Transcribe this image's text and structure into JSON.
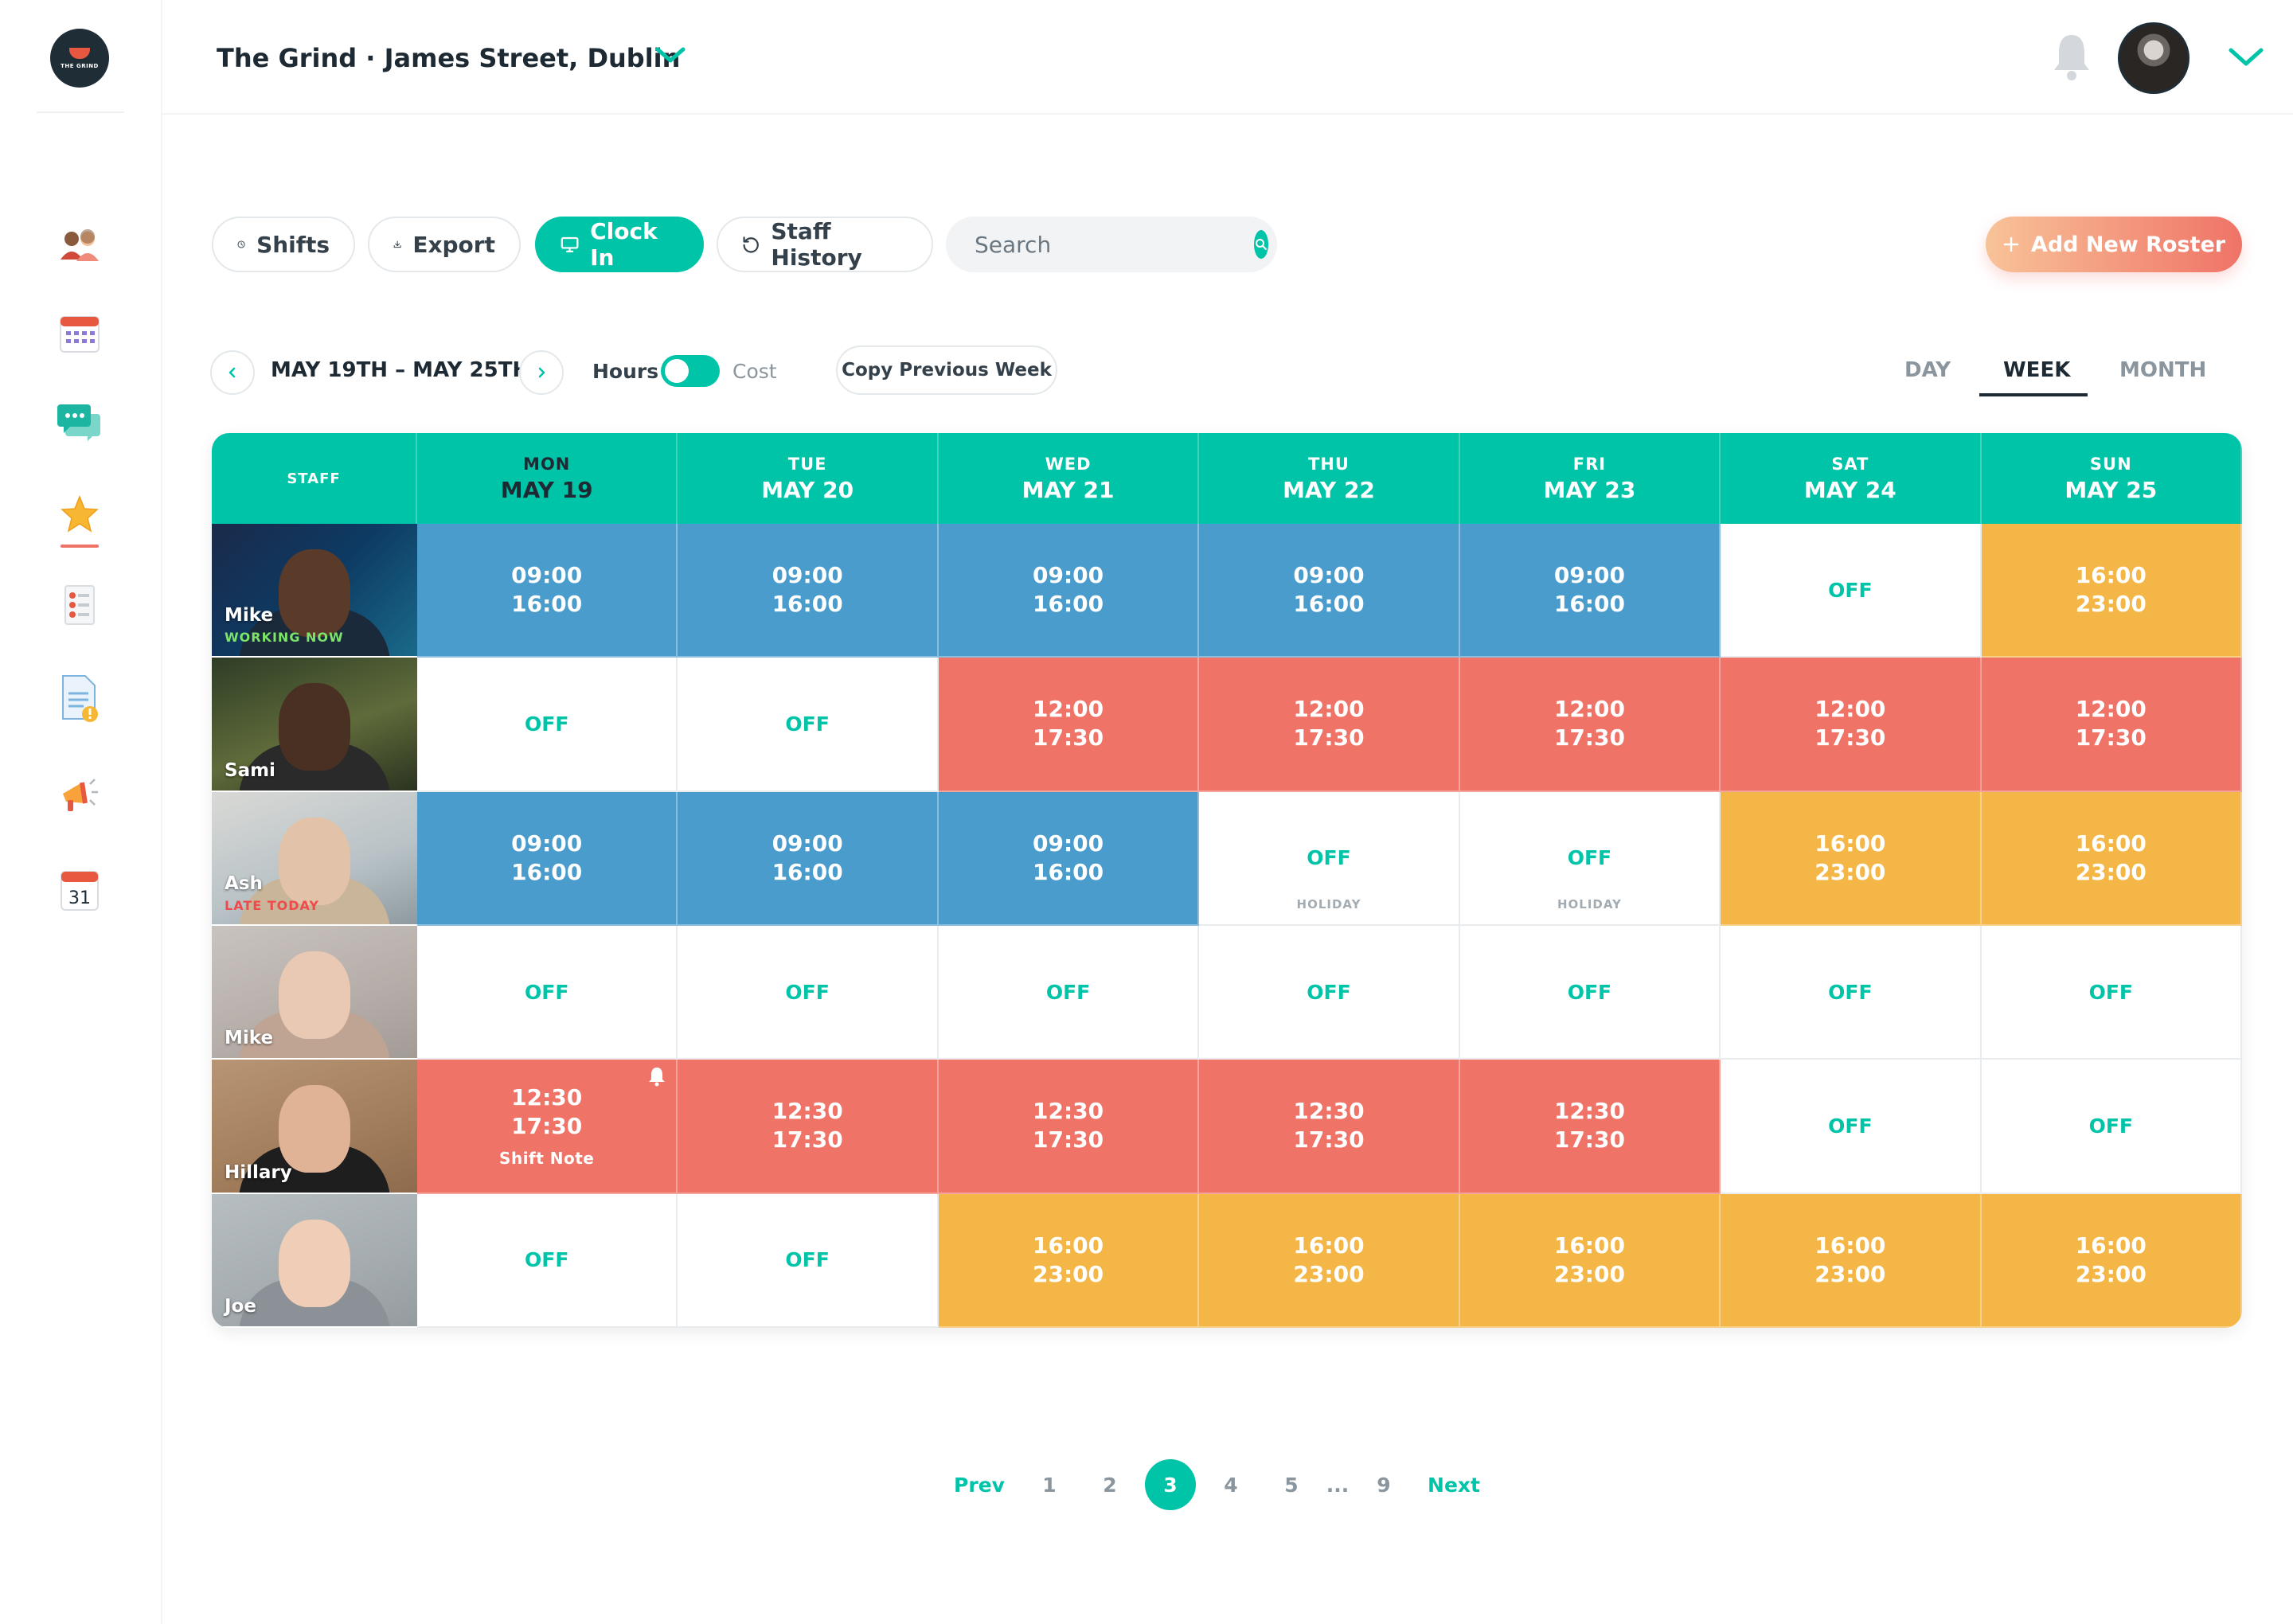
{
  "brand": {
    "logo_text": "THE GRIND"
  },
  "header": {
    "venue": "The Grind · James Street, Dublin"
  },
  "sidebar": {
    "items": [
      {
        "name": "staff",
        "icon": "people-icon"
      },
      {
        "name": "calendar",
        "icon": "calendar-grid-icon"
      },
      {
        "name": "messages",
        "icon": "chat-icon"
      },
      {
        "name": "favourites",
        "icon": "star-icon",
        "active": true
      },
      {
        "name": "checklist",
        "icon": "checklist-icon"
      },
      {
        "name": "documents",
        "icon": "document-alert-icon"
      },
      {
        "name": "announcements",
        "icon": "megaphone-icon"
      },
      {
        "name": "date",
        "icon": "calendar-date-icon",
        "label": "31"
      }
    ]
  },
  "toolbar": {
    "shifts": "Shifts",
    "export": "Export",
    "clock_in": "Clock In",
    "staff_history": "Staff History",
    "search_placeholder": "Search",
    "add_roster": "Add New Roster"
  },
  "weeknav": {
    "range": "MAY 19TH – MAY 25TH",
    "hours": "Hours",
    "cost": "Cost",
    "toggle_on": true,
    "copy_previous": "Copy Previous Week",
    "views": {
      "day": "DAY",
      "week": "WEEK",
      "month": "MONTH"
    },
    "active_view": "WEEK"
  },
  "roster": {
    "staff_header": "STAFF",
    "days": [
      {
        "dow": "MON",
        "date": "MAY 19"
      },
      {
        "dow": "TUE",
        "date": "MAY 20"
      },
      {
        "dow": "WED",
        "date": "MAY 21"
      },
      {
        "dow": "THU",
        "date": "MAY 22"
      },
      {
        "dow": "FRI",
        "date": "MAY 23"
      },
      {
        "dow": "SAT",
        "date": "MAY 24"
      },
      {
        "dow": "SUN",
        "date": "MAY 25"
      }
    ],
    "colors": {
      "blue": "#4a9ccd",
      "red": "#ef7367",
      "yellow": "#f4b747",
      "accent": "#00c4a7"
    },
    "rows": [
      {
        "name": "Mike",
        "status": "WORKING NOW",
        "status_color": "#7de36b",
        "cells": [
          {
            "s": "09:00",
            "e": "16:00",
            "c": "blue"
          },
          {
            "s": "09:00",
            "e": "16:00",
            "c": "blue"
          },
          {
            "s": "09:00",
            "e": "16:00",
            "c": "blue"
          },
          {
            "s": "09:00",
            "e": "16:00",
            "c": "blue"
          },
          {
            "s": "09:00",
            "e": "16:00",
            "c": "blue"
          },
          {
            "off": "OFF"
          },
          {
            "s": "16:00",
            "e": "23:00",
            "c": "yellow"
          }
        ]
      },
      {
        "name": "Sami",
        "cells": [
          {
            "off": "OFF"
          },
          {
            "off": "OFF"
          },
          {
            "s": "12:00",
            "e": "17:30",
            "c": "red"
          },
          {
            "s": "12:00",
            "e": "17:30",
            "c": "red"
          },
          {
            "s": "12:00",
            "e": "17:30",
            "c": "red"
          },
          {
            "s": "12:00",
            "e": "17:30",
            "c": "red"
          },
          {
            "s": "12:00",
            "e": "17:30",
            "c": "red"
          }
        ]
      },
      {
        "name": "Ash",
        "status": "LATE TODAY",
        "status_color": "#ef4b4b",
        "cells": [
          {
            "s": "09:00",
            "e": "16:00",
            "c": "blue"
          },
          {
            "s": "09:00",
            "e": "16:00",
            "c": "blue"
          },
          {
            "s": "09:00",
            "e": "16:00",
            "c": "blue"
          },
          {
            "off": "OFF",
            "sub": "HOLIDAY"
          },
          {
            "off": "OFF",
            "sub": "HOLIDAY"
          },
          {
            "s": "16:00",
            "e": "23:00",
            "c": "yellow"
          },
          {
            "s": "16:00",
            "e": "23:00",
            "c": "yellow"
          }
        ]
      },
      {
        "name": "Mike",
        "cells": [
          {
            "off": "OFF"
          },
          {
            "off": "OFF"
          },
          {
            "off": "OFF"
          },
          {
            "off": "OFF"
          },
          {
            "off": "OFF"
          },
          {
            "off": "OFF"
          },
          {
            "off": "OFF"
          }
        ]
      },
      {
        "name": "Hillary",
        "cells": [
          {
            "s": "12:30",
            "e": "17:30",
            "c": "red",
            "note": "Shift Note",
            "bell": true
          },
          {
            "s": "12:30",
            "e": "17:30",
            "c": "red"
          },
          {
            "s": "12:30",
            "e": "17:30",
            "c": "red"
          },
          {
            "s": "12:30",
            "e": "17:30",
            "c": "red"
          },
          {
            "s": "12:30",
            "e": "17:30",
            "c": "red"
          },
          {
            "off": "OFF"
          },
          {
            "off": "OFF"
          }
        ]
      },
      {
        "name": "Joe",
        "cells": [
          {
            "off": "OFF"
          },
          {
            "off": "OFF"
          },
          {
            "s": "16:00",
            "e": "23:00",
            "c": "yellow"
          },
          {
            "s": "16:00",
            "e": "23:00",
            "c": "yellow"
          },
          {
            "s": "16:00",
            "e": "23:00",
            "c": "yellow"
          },
          {
            "s": "16:00",
            "e": "23:00",
            "c": "yellow"
          },
          {
            "s": "16:00",
            "e": "23:00",
            "c": "yellow"
          }
        ]
      }
    ]
  },
  "pagination": {
    "prev": "Prev",
    "next": "Next",
    "ellipsis": "...",
    "pages": [
      "1",
      "2",
      "3",
      "4",
      "5",
      "9"
    ],
    "current": "3"
  }
}
